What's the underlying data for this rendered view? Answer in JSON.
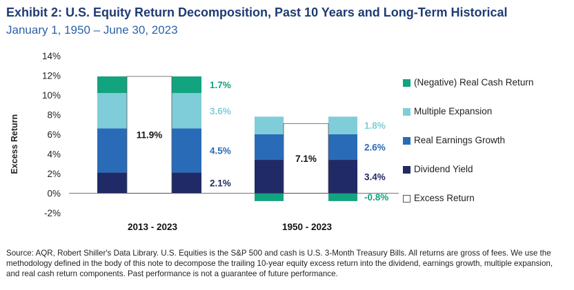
{
  "header": {
    "title": "Exhibit 2: U.S. Equity Return Decomposition, Past 10 Years and Long-Term Historical",
    "subtitle": "January 1, 1950 – June 30, 2023"
  },
  "footer": {
    "source": "Source: AQR, Robert Shiller's Data Library. U.S. Equities is the S&P 500 and cash is U.S. 3-Month Treasury Bills. All returns are gross of fees. We use the methodology defined in the body of this note to decompose the trailing 10-year equity excess return into the dividend, earnings growth, multiple expansion, and real cash return components. Past performance is not a guarantee of future performance."
  },
  "colors": {
    "real_cash_return": "#12a37f",
    "multiple_expansion": "#7fcdd9",
    "real_earnings_growth": "#2a6bb8",
    "dividend_yield": "#1f2a66",
    "excess_return": "#ffffff",
    "text_dark": "#1f3b73"
  },
  "chart_data": {
    "type": "bar",
    "stacked": true,
    "ylabel": "Excess Return",
    "ylim": [
      -2,
      14
    ],
    "yticks": [
      "14%",
      "12%",
      "10%",
      "8%",
      "6%",
      "4%",
      "2%",
      "0%",
      "-2%"
    ],
    "categories": [
      "2013 - 2023",
      "1950 - 2023"
    ],
    "series": [
      {
        "name": "Dividend Yield",
        "values": [
          2.1,
          3.4
        ],
        "labels": [
          "2.1%",
          "3.4%"
        ],
        "color_key": "dividend_yield"
      },
      {
        "name": "Real Earnings Growth",
        "values": [
          4.5,
          2.6
        ],
        "labels": [
          "4.5%",
          "2.6%"
        ],
        "color_key": "real_earnings_growth"
      },
      {
        "name": "Multiple Expansion",
        "values": [
          3.6,
          1.8
        ],
        "labels": [
          "3.6%",
          "1.8%"
        ],
        "color_key": "multiple_expansion"
      },
      {
        "name": "(Negative) Real Cash Return",
        "values": [
          1.7,
          -0.8
        ],
        "labels": [
          "1.7%",
          "-0.8%"
        ],
        "color_key": "real_cash_return"
      }
    ],
    "excess_return": {
      "name": "Excess Return",
      "values": [
        11.9,
        7.1
      ],
      "labels": [
        "11.9%",
        "7.1%"
      ]
    },
    "legend": {
      "placement": "right",
      "items": [
        "(Negative) Real Cash Return",
        "Multiple Expansion",
        "Real Earnings Growth",
        "Dividend Yield",
        "Excess Return"
      ]
    },
    "grid": false
  }
}
